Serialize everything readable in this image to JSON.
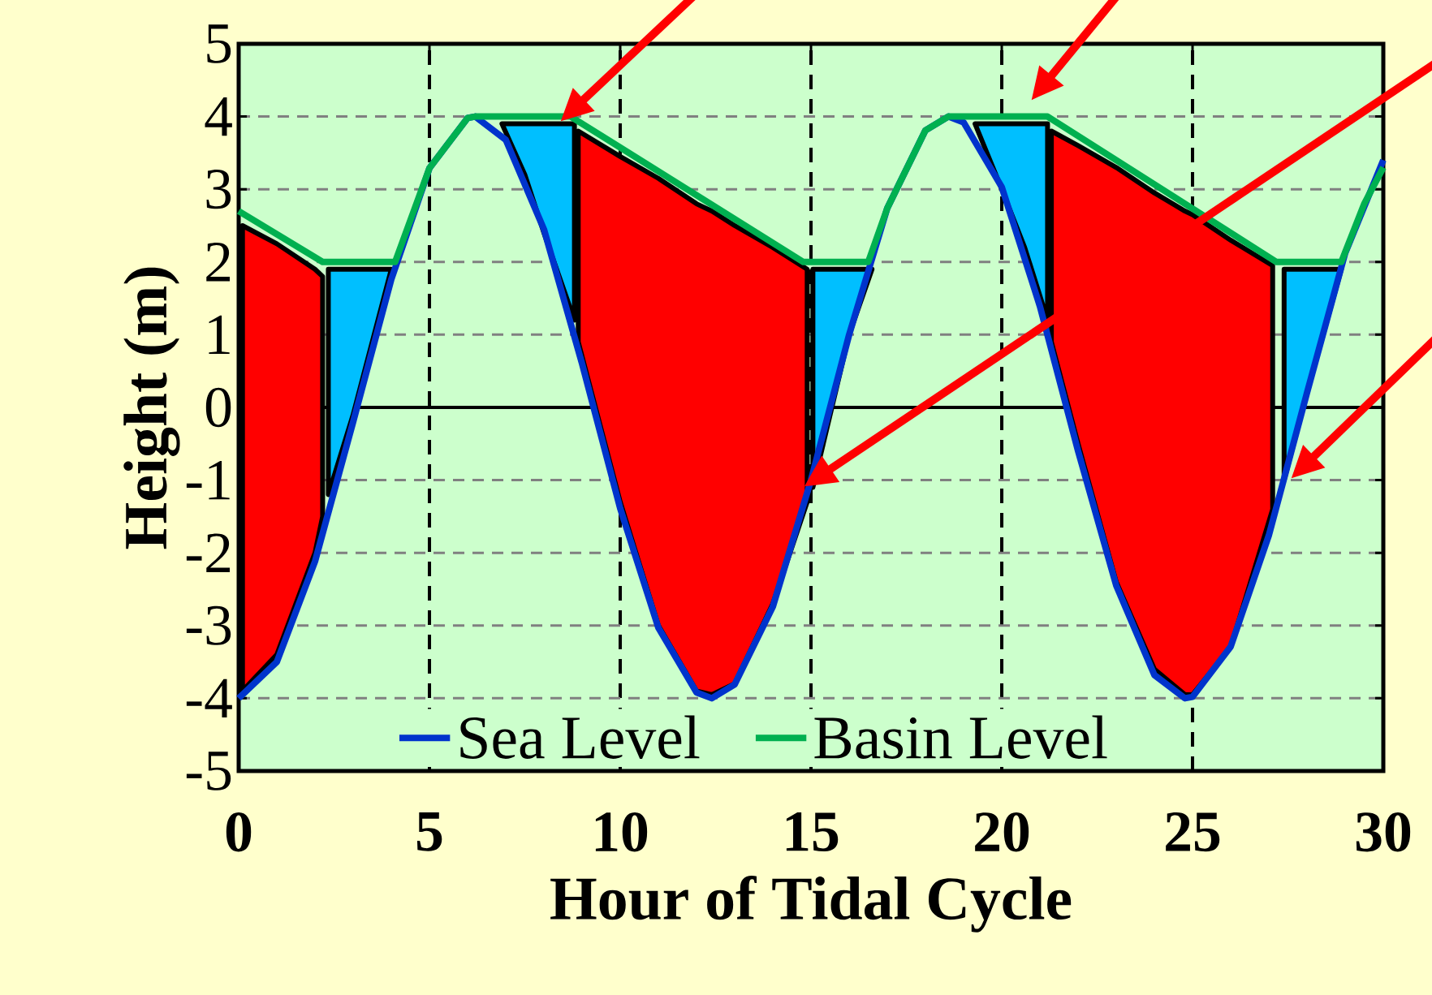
{
  "chart_data": {
    "type": "line",
    "xlabel": "Hour of Tidal Cycle",
    "ylabel": "Height (m)",
    "xlim": [
      0,
      30
    ],
    "ylim": [
      -5,
      5
    ],
    "xticks": [
      0,
      5,
      10,
      15,
      20,
      25,
      30
    ],
    "yticks": [
      -5,
      -4,
      -3,
      -2,
      -1,
      0,
      1,
      2,
      3,
      4,
      5
    ],
    "grid": true,
    "legend": "bottom",
    "marker": "none",
    "line_style": "solid",
    "ref_lines": [
      {
        "axis": "y",
        "value": 0,
        "color": "#000000"
      }
    ],
    "series": [
      {
        "type": "area",
        "color": "#ff0000",
        "x": [
          0.1,
          1,
          2,
          2.2,
          2.2,
          2,
          1,
          0.1
        ],
        "values": [
          2.5,
          2.25,
          1.9,
          1.8,
          -1.5,
          -2.0,
          -3.4,
          -3.9
        ]
      },
      {
        "type": "area",
        "color": "#00bfff",
        "x": [
          2.35,
          3,
          4.0,
          3,
          2.35
        ],
        "values": [
          1.9,
          1.9,
          1.9,
          -0.1,
          -1.2
        ]
      },
      {
        "type": "area",
        "color": "#00bfff",
        "x": [
          6.9,
          7.5,
          8,
          8.8,
          8.8,
          8,
          7.5
        ],
        "values": [
          3.9,
          3.9,
          3.9,
          3.9,
          1.2,
          2.4,
          3.2
        ]
      },
      {
        "type": "area",
        "color": "#ff0000",
        "x": [
          8.9,
          10,
          11,
          12,
          12.4,
          13,
          14,
          14.9,
          14.9,
          14,
          13,
          12.4,
          12,
          11,
          10,
          8.9
        ],
        "values": [
          3.8,
          3.45,
          3.15,
          2.8,
          2.7,
          2.5,
          2.2,
          1.9,
          -1.3,
          -2.7,
          -3.8,
          -3.95,
          -3.9,
          -3.0,
          -1.3,
          0.9
        ]
      },
      {
        "type": "area",
        "color": "#00bfff",
        "x": [
          15.05,
          16.6,
          16,
          15.05
        ],
        "values": [
          1.9,
          1.9,
          1.0,
          -1.1
        ]
      },
      {
        "type": "area",
        "color": "#00bfff",
        "x": [
          19.3,
          20,
          20.6,
          21.2,
          21.2,
          20.6,
          20
        ],
        "values": [
          3.9,
          3.9,
          3.9,
          3.9,
          1.2,
          2.2,
          3.0
        ]
      },
      {
        "type": "area",
        "color": "#ff0000",
        "x": [
          21.3,
          22,
          23,
          24,
          24.8,
          25,
          26,
          27.1,
          27.1,
          26,
          25,
          24.8,
          24,
          23,
          22,
          21.3
        ],
        "values": [
          3.8,
          3.6,
          3.3,
          2.95,
          2.7,
          2.65,
          2.3,
          1.95,
          -1.4,
          -3.3,
          -3.95,
          -3.95,
          -3.6,
          -2.4,
          -0.5,
          0.9
        ]
      },
      {
        "type": "area",
        "color": "#00bfff",
        "x": [
          27.4,
          28.9,
          28,
          27.4
        ],
        "values": [
          1.9,
          1.9,
          0.2,
          -1.0
        ]
      },
      {
        "name": "Sea Level",
        "color": "#0033cc",
        "x": [
          0,
          1,
          2,
          3,
          4,
          5,
          6,
          6.2,
          7,
          8,
          9,
          10,
          11,
          12,
          12.4,
          13,
          14,
          15,
          16,
          17,
          18,
          18.6,
          19,
          20,
          21,
          22,
          23,
          24,
          24.8,
          25,
          26,
          27,
          28,
          29,
          30
        ],
        "values": [
          -4.0,
          -3.5,
          -2.12,
          -0.2,
          1.76,
          3.29,
          3.98,
          4.0,
          3.68,
          2.45,
          0.6,
          -1.39,
          -3.03,
          -3.92,
          -4.0,
          -3.81,
          -2.74,
          -1.0,
          1.0,
          2.74,
          3.81,
          4.0,
          3.92,
          3.03,
          1.39,
          -0.6,
          -2.45,
          -3.68,
          -4.0,
          -3.98,
          -3.29,
          -1.76,
          0.2,
          2.12,
          3.4
        ]
      },
      {
        "name": "Basin Level",
        "color": "#00b050",
        "x": [
          0,
          2.2,
          4.1,
          5,
          6,
          6.2,
          8.7,
          14.8,
          16.5,
          17,
          18,
          18.6,
          21.2,
          27.2,
          28.9,
          29.5,
          30
        ],
        "values": [
          2.7,
          2.0,
          2.0,
          3.29,
          3.98,
          4.0,
          4.0,
          2.0,
          2.0,
          2.74,
          3.81,
          4.0,
          4.0,
          2.0,
          2.0,
          2.8,
          3.3
        ]
      }
    ]
  }
}
